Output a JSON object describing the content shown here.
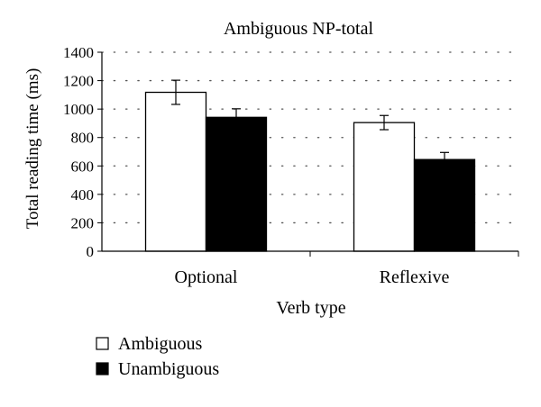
{
  "chart_data": {
    "type": "bar",
    "title": "Ambiguous NP-total",
    "xlabel": "Verb type",
    "ylabel": "Total reading time (ms)",
    "categories": [
      "Optional",
      "Reflexive"
    ],
    "series": [
      {
        "name": "Ambiguous",
        "values": [
          1118,
          905
        ],
        "error": [
          85,
          50
        ],
        "fill": "#ffffff",
        "stroke": "#000000"
      },
      {
        "name": "Unambiguous",
        "values": [
          942,
          645
        ],
        "error": [
          60,
          50
        ],
        "fill": "#000000",
        "stroke": "#000000"
      }
    ],
    "ylim": [
      0,
      1400
    ],
    "yticks": [
      0,
      200,
      400,
      600,
      800,
      1000,
      1200,
      1400
    ],
    "grid": true,
    "grid_style": "dotted",
    "legend_position": "bottom-left"
  }
}
